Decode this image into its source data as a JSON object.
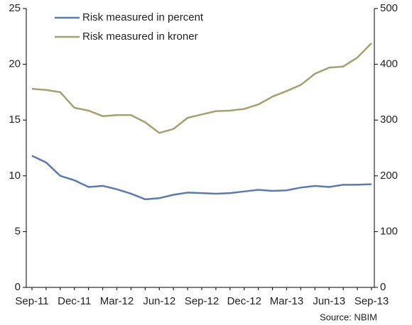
{
  "chart_data": {
    "type": "line",
    "categories": [
      "Sep-11",
      null,
      null,
      "Dec-11",
      null,
      null,
      "Mar-12",
      null,
      null,
      "Jun-12",
      null,
      null,
      "Sep-12",
      null,
      null,
      "Dec-12",
      null,
      null,
      "Mar-13",
      null,
      null,
      "Jun-13",
      null,
      null,
      "Sep-13"
    ],
    "series": [
      {
        "name": "Risk measured in percent",
        "color": "#5b7bad",
        "axis": "y",
        "values": [
          11.8,
          11.2,
          10.0,
          9.6,
          9.0,
          9.1,
          8.8,
          8.4,
          7.9,
          8.0,
          8.3,
          8.5,
          8.45,
          8.4,
          8.45,
          8.6,
          8.75,
          8.65,
          8.7,
          8.95,
          9.1,
          9.0,
          9.2,
          9.2,
          9.25
        ]
      },
      {
        "name": "Risk measured in kroner",
        "color": "#a89f70",
        "axis": "y2",
        "values": [
          356,
          354,
          350,
          322,
          317,
          307,
          309,
          309,
          296,
          277,
          284,
          304,
          310,
          316,
          317,
          320,
          328,
          342,
          352,
          363,
          383,
          394,
          396,
          412,
          438
        ]
      }
    ],
    "ylim": [
      0,
      25
    ],
    "yticks": [
      0,
      5,
      10,
      15,
      20,
      25
    ],
    "y2lim": [
      0,
      500
    ],
    "y2ticks": [
      0,
      100,
      200,
      300,
      400,
      500
    ],
    "source": "Source: NBIM"
  }
}
